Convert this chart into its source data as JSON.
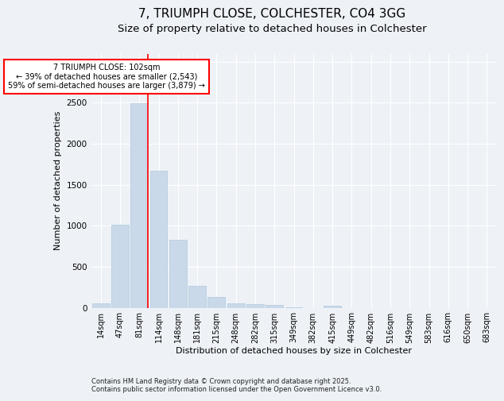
{
  "title_line1": "7, TRIUMPH CLOSE, COLCHESTER, CO4 3GG",
  "title_line2": "Size of property relative to detached houses in Colchester",
  "xlabel": "Distribution of detached houses by size in Colchester",
  "ylabel": "Number of detached properties",
  "categories": [
    "14sqm",
    "47sqm",
    "81sqm",
    "114sqm",
    "148sqm",
    "181sqm",
    "215sqm",
    "248sqm",
    "282sqm",
    "315sqm",
    "349sqm",
    "382sqm",
    "415sqm",
    "449sqm",
    "482sqm",
    "516sqm",
    "549sqm",
    "583sqm",
    "616sqm",
    "650sqm",
    "683sqm"
  ],
  "values": [
    50,
    1010,
    2490,
    1670,
    830,
    270,
    130,
    55,
    45,
    30,
    5,
    0,
    20,
    0,
    0,
    0,
    0,
    0,
    0,
    0,
    0
  ],
  "bar_color": "#c9d9ea",
  "bar_edgecolor": "#b0c8dc",
  "vline_color": "red",
  "vline_x_index": 2,
  "annotation_text": "7 TRIUMPH CLOSE: 102sqm\n← 39% of detached houses are smaller (2,543)\n59% of semi-detached houses are larger (3,879) →",
  "annotation_box_edgecolor": "red",
  "annotation_box_facecolor": "white",
  "ylim": [
    0,
    3100
  ],
  "background_color": "#eef2f7",
  "grid_color": "white",
  "footer_line1": "Contains HM Land Registry data © Crown copyright and database right 2025.",
  "footer_line2": "Contains public sector information licensed under the Open Government Licence v3.0.",
  "title_fontsize": 11,
  "subtitle_fontsize": 9.5,
  "label_fontsize": 8,
  "tick_fontsize": 7,
  "annotation_fontsize": 7,
  "footer_fontsize": 6,
  "ylabel_fontsize": 8
}
